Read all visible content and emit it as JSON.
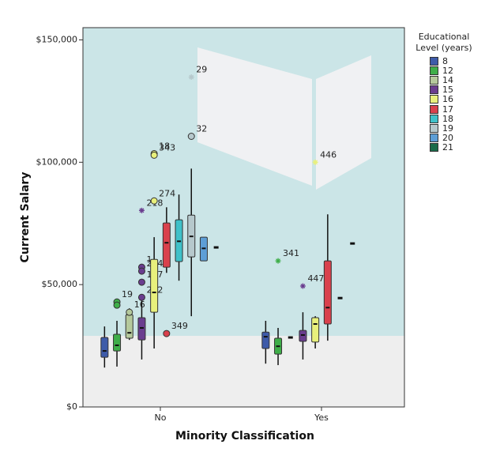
{
  "chart_data": {
    "type": "boxplot",
    "x_label": "Minority Classification",
    "y_label": "Current Salary",
    "legend_title": "Educational Level (years)",
    "categories": [
      "No",
      "Yes"
    ],
    "ylim": [
      0,
      155000
    ],
    "yticks": [
      {
        "value": 0,
        "label": "$0"
      },
      {
        "value": 50000,
        "label": "$50,000"
      },
      {
        "value": 100000,
        "label": "$100,000"
      },
      {
        "value": 150000,
        "label": "$150,000"
      }
    ],
    "series": [
      {
        "name": "8",
        "color": "#3e5ba9",
        "boxes": [
          {
            "min": 16100,
            "q1": 20300,
            "median": 22900,
            "q3": 28400,
            "max": 32900
          },
          {
            "min": 17700,
            "q1": 23900,
            "median": 28700,
            "q3": 30600,
            "max": 35200
          }
        ],
        "outliers": []
      },
      {
        "name": "12",
        "color": "#3fae49",
        "boxes": [
          {
            "min": 16500,
            "q1": 22900,
            "median": 25200,
            "q3": 29700,
            "max": 35200
          },
          {
            "min": 17100,
            "q1": 21600,
            "median": 24800,
            "q3": 28100,
            "max": 32300
          }
        ],
        "outliers": [
          {
            "category": 0,
            "value": 42900,
            "marker": "circle",
            "label": "19"
          },
          {
            "category": 0,
            "value": 41600,
            "marker": "circle"
          },
          {
            "category": 1,
            "value": 59700,
            "marker": "star",
            "label": "341"
          }
        ]
      },
      {
        "name": "14",
        "color": "#b5c99c",
        "boxes": [
          {
            "min": 27400,
            "q1": 28100,
            "median": 30300,
            "q3": 37700,
            "max": 40300
          },
          {
            "min": 28400,
            "q1": 28400,
            "median": 28400,
            "q3": 28400,
            "max": 28400
          }
        ],
        "outliers": [
          {
            "category": 0,
            "value": 38700,
            "marker": "circle",
            "label": "16"
          }
        ]
      },
      {
        "name": "15",
        "color": "#6a3d8f",
        "boxes": [
          {
            "min": 19400,
            "q1": 27400,
            "median": 32300,
            "q3": 36500,
            "max": 45500
          },
          {
            "min": 19400,
            "q1": 26800,
            "median": 29400,
            "q3": 31300,
            "max": 38700
          }
        ],
        "outliers": [
          {
            "category": 0,
            "value": 57100,
            "marker": "circle",
            "label": "1"
          },
          {
            "category": 0,
            "value": 55500,
            "marker": "circle",
            "label": "234"
          },
          {
            "category": 0,
            "value": 51000,
            "marker": "circle",
            "label": "197"
          },
          {
            "category": 0,
            "value": 44800,
            "marker": "circle",
            "label": "242"
          },
          {
            "category": 0,
            "value": 80300,
            "marker": "star",
            "label": "218"
          },
          {
            "category": 1,
            "value": 49400,
            "marker": "star",
            "label": "447"
          }
        ]
      },
      {
        "name": "16",
        "color": "#e8f07c",
        "boxes": [
          {
            "min": 23900,
            "q1": 38700,
            "median": 46800,
            "q3": 60300,
            "max": 69400
          },
          {
            "min": 23900,
            "q1": 26500,
            "median": 33900,
            "q3": 36500,
            "max": 37100
          }
        ],
        "outliers": [
          {
            "category": 0,
            "value": 103500,
            "marker": "circle",
            "label": "18"
          },
          {
            "category": 0,
            "value": 102900,
            "marker": "circle",
            "label": "343"
          },
          {
            "category": 0,
            "value": 84200,
            "marker": "circle",
            "label": "274"
          },
          {
            "category": 1,
            "value": 100000,
            "marker": "star",
            "label": "446"
          }
        ]
      },
      {
        "name": "17",
        "color": "#d9414d",
        "boxes": [
          {
            "min": 54800,
            "q1": 57100,
            "median": 67100,
            "q3": 75200,
            "max": 81600
          },
          {
            "min": 27100,
            "q1": 33900,
            "median": 40600,
            "q3": 59700,
            "max": 78700
          }
        ],
        "outliers": [
          {
            "category": 0,
            "value": 30000,
            "marker": "circle",
            "label": "349"
          }
        ]
      },
      {
        "name": "18",
        "color": "#3fc1c9",
        "boxes": [
          {
            "min": 51600,
            "q1": 59400,
            "median": 67700,
            "q3": 76500,
            "max": 86800
          },
          {
            "min": 44500,
            "q1": 44500,
            "median": 44500,
            "q3": 44500,
            "max": 44500
          }
        ],
        "outliers": []
      },
      {
        "name": "19",
        "color": "#b6c8cc",
        "boxes": [
          {
            "min": 37100,
            "q1": 61300,
            "median": 69700,
            "q3": 78400,
            "max": 97400
          },
          {
            "min": 66800,
            "q1": 66800,
            "median": 66800,
            "q3": 66800,
            "max": 66800
          }
        ],
        "outliers": [
          {
            "category": 0,
            "value": 110600,
            "marker": "circle",
            "label": "32"
          },
          {
            "category": 0,
            "value": 134800,
            "marker": "star",
            "label": "29"
          }
        ]
      },
      {
        "name": "20",
        "color": "#5d9ed6",
        "boxes": [
          {
            "min": 59700,
            "q1": 59700,
            "median": 64800,
            "q3": 69400,
            "max": 69400
          },
          null
        ],
        "outliers": []
      },
      {
        "name": "21",
        "color": "#1b6b4a",
        "boxes": [
          {
            "min": 65200,
            "q1": 65200,
            "median": 65200,
            "q3": 65200,
            "max": 65200
          },
          null
        ],
        "outliers": []
      }
    ]
  }
}
